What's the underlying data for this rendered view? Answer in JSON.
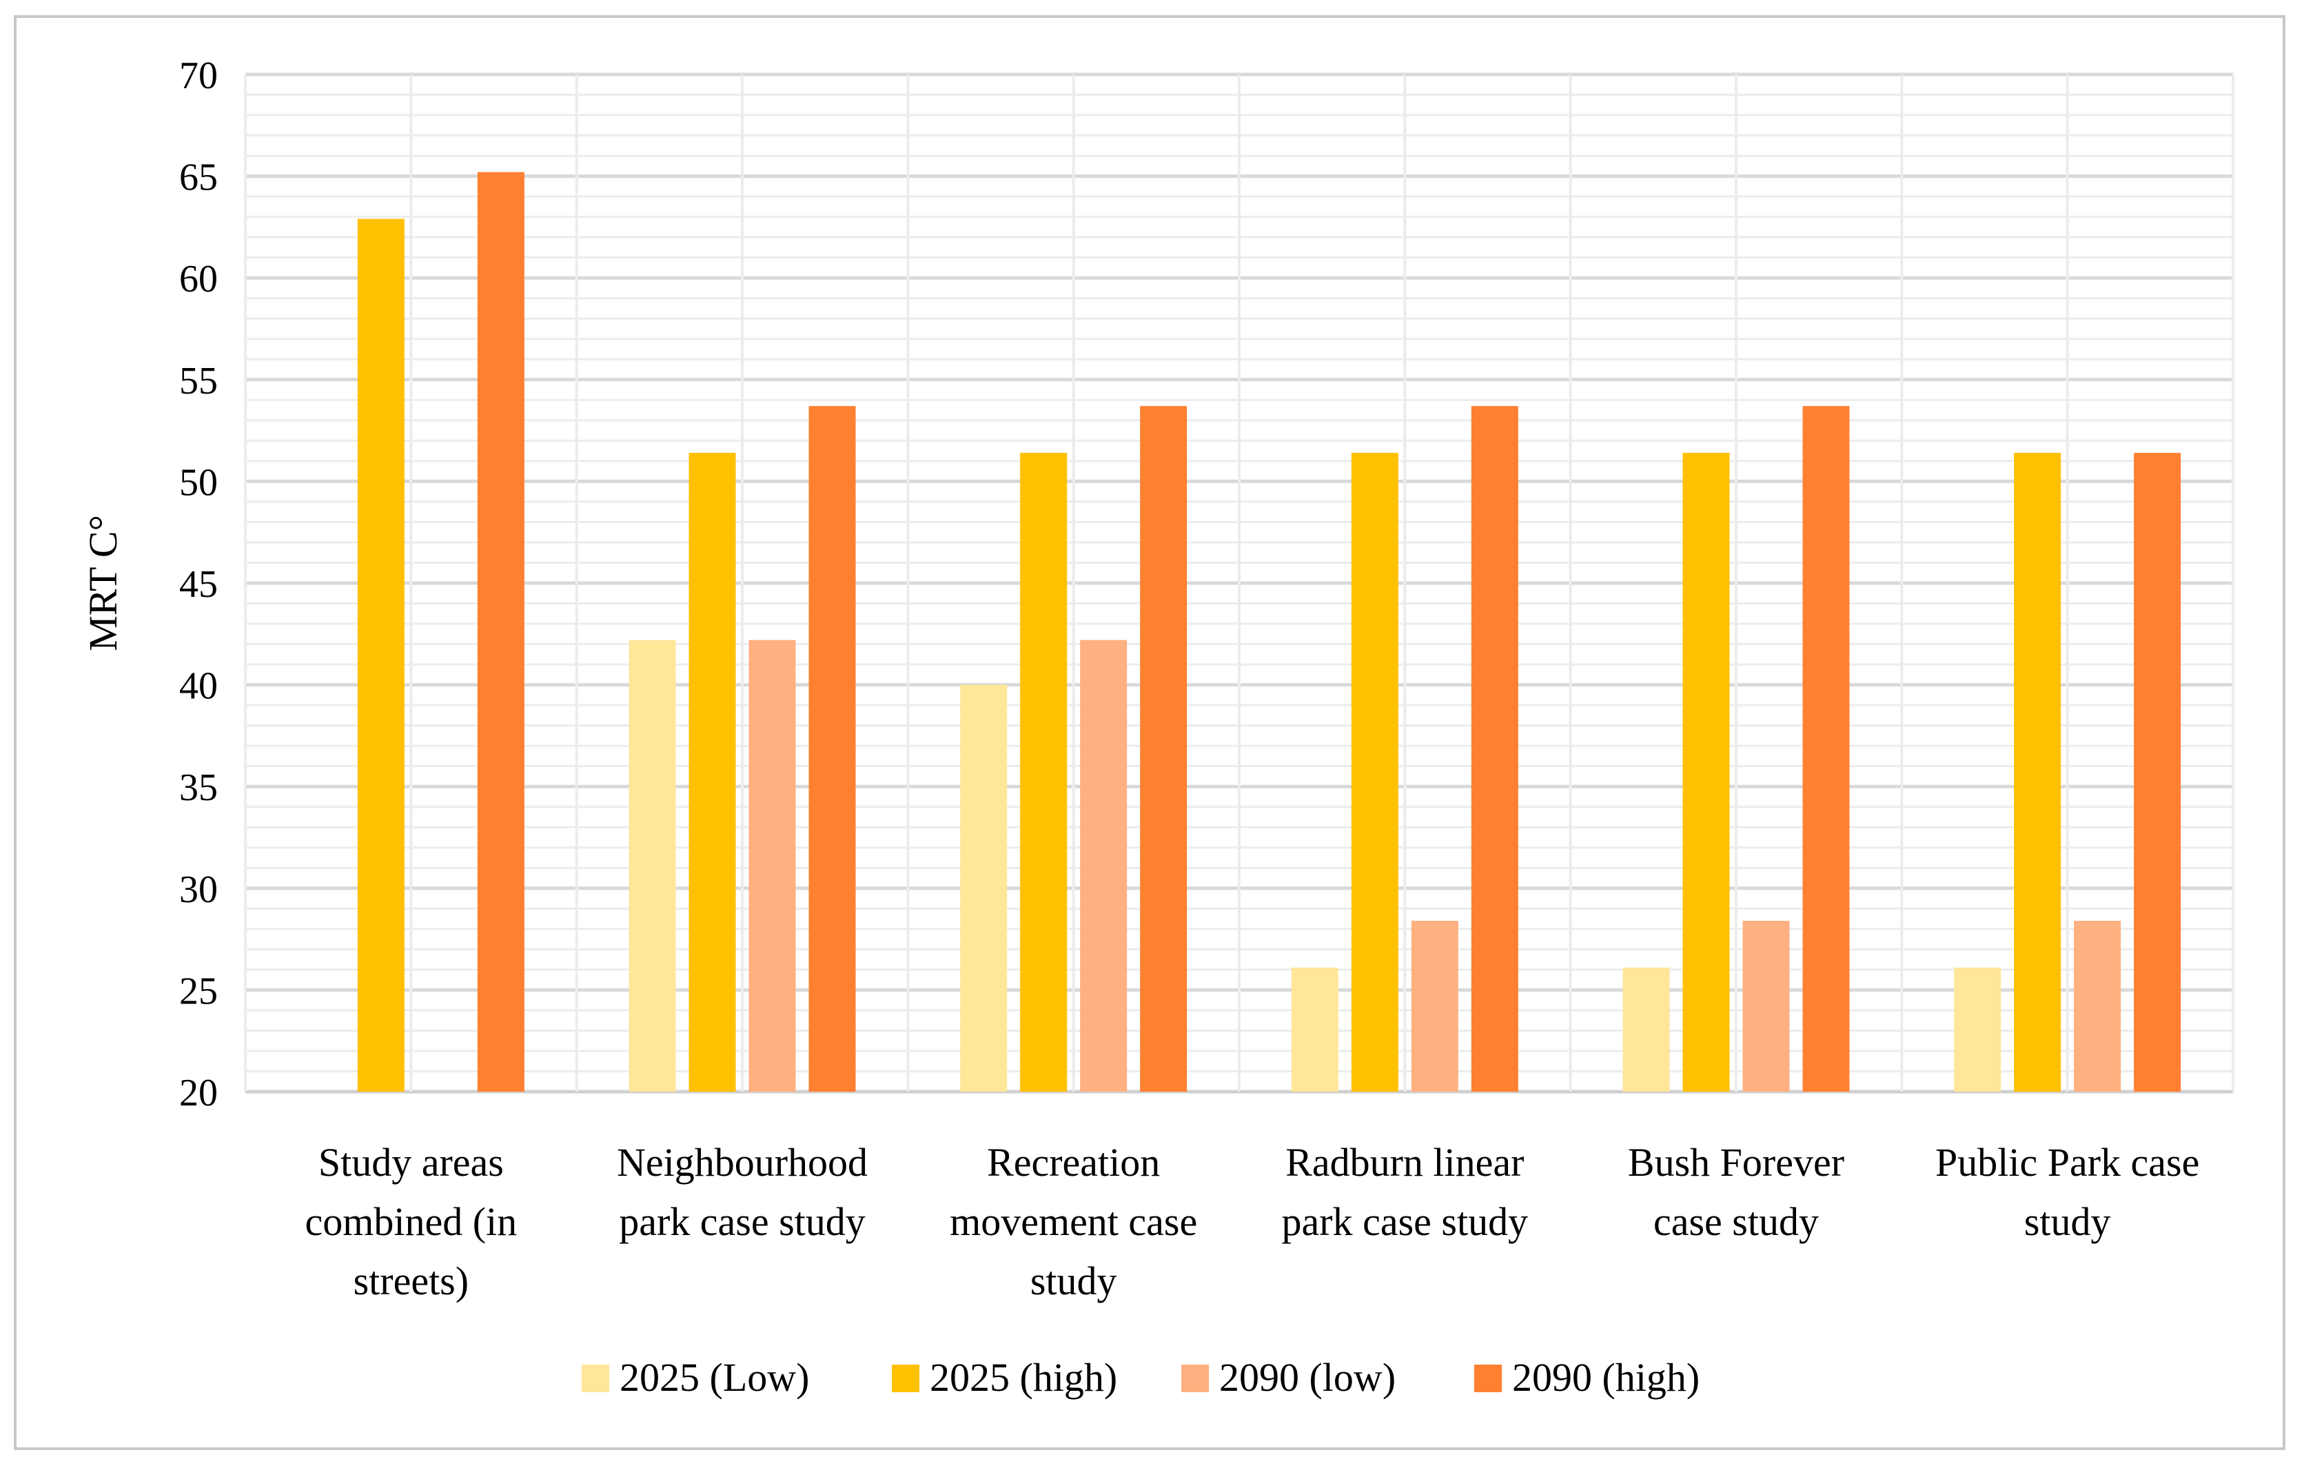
{
  "chart_data": {
    "type": "bar",
    "title": "",
    "xlabel": "",
    "ylabel": "MRT C°",
    "ylim": [
      20,
      70
    ],
    "yticks": [
      20,
      25,
      30,
      35,
      40,
      45,
      50,
      55,
      60,
      65,
      70
    ],
    "grid": true,
    "legend_position": "bottom",
    "categories": [
      [
        "Study areas",
        "combined (in",
        "streets)"
      ],
      [
        "Neighbourhood",
        "park case study"
      ],
      [
        "Recreation",
        "movement case",
        "study"
      ],
      [
        "Radburn linear",
        "park case study"
      ],
      [
        "Bush Forever",
        "case study"
      ],
      [
        "Public Park case",
        "study"
      ]
    ],
    "series": [
      {
        "name": "2025 (Low)",
        "color": "#FFE699",
        "values": [
          null,
          42.2,
          40.0,
          26.1,
          26.1,
          26.1
        ]
      },
      {
        "name": "2025 (high)",
        "color": "#FFC000",
        "values": [
          62.9,
          51.4,
          51.4,
          51.4,
          51.4,
          51.4
        ]
      },
      {
        "name": "2090 (low)",
        "color": "#FFB080",
        "values": [
          null,
          42.2,
          42.2,
          28.4,
          28.4,
          28.4
        ]
      },
      {
        "name": "2090 (high)",
        "color": "#FF8030",
        "values": [
          65.2,
          53.7,
          53.7,
          53.7,
          53.7,
          51.4
        ]
      }
    ]
  }
}
